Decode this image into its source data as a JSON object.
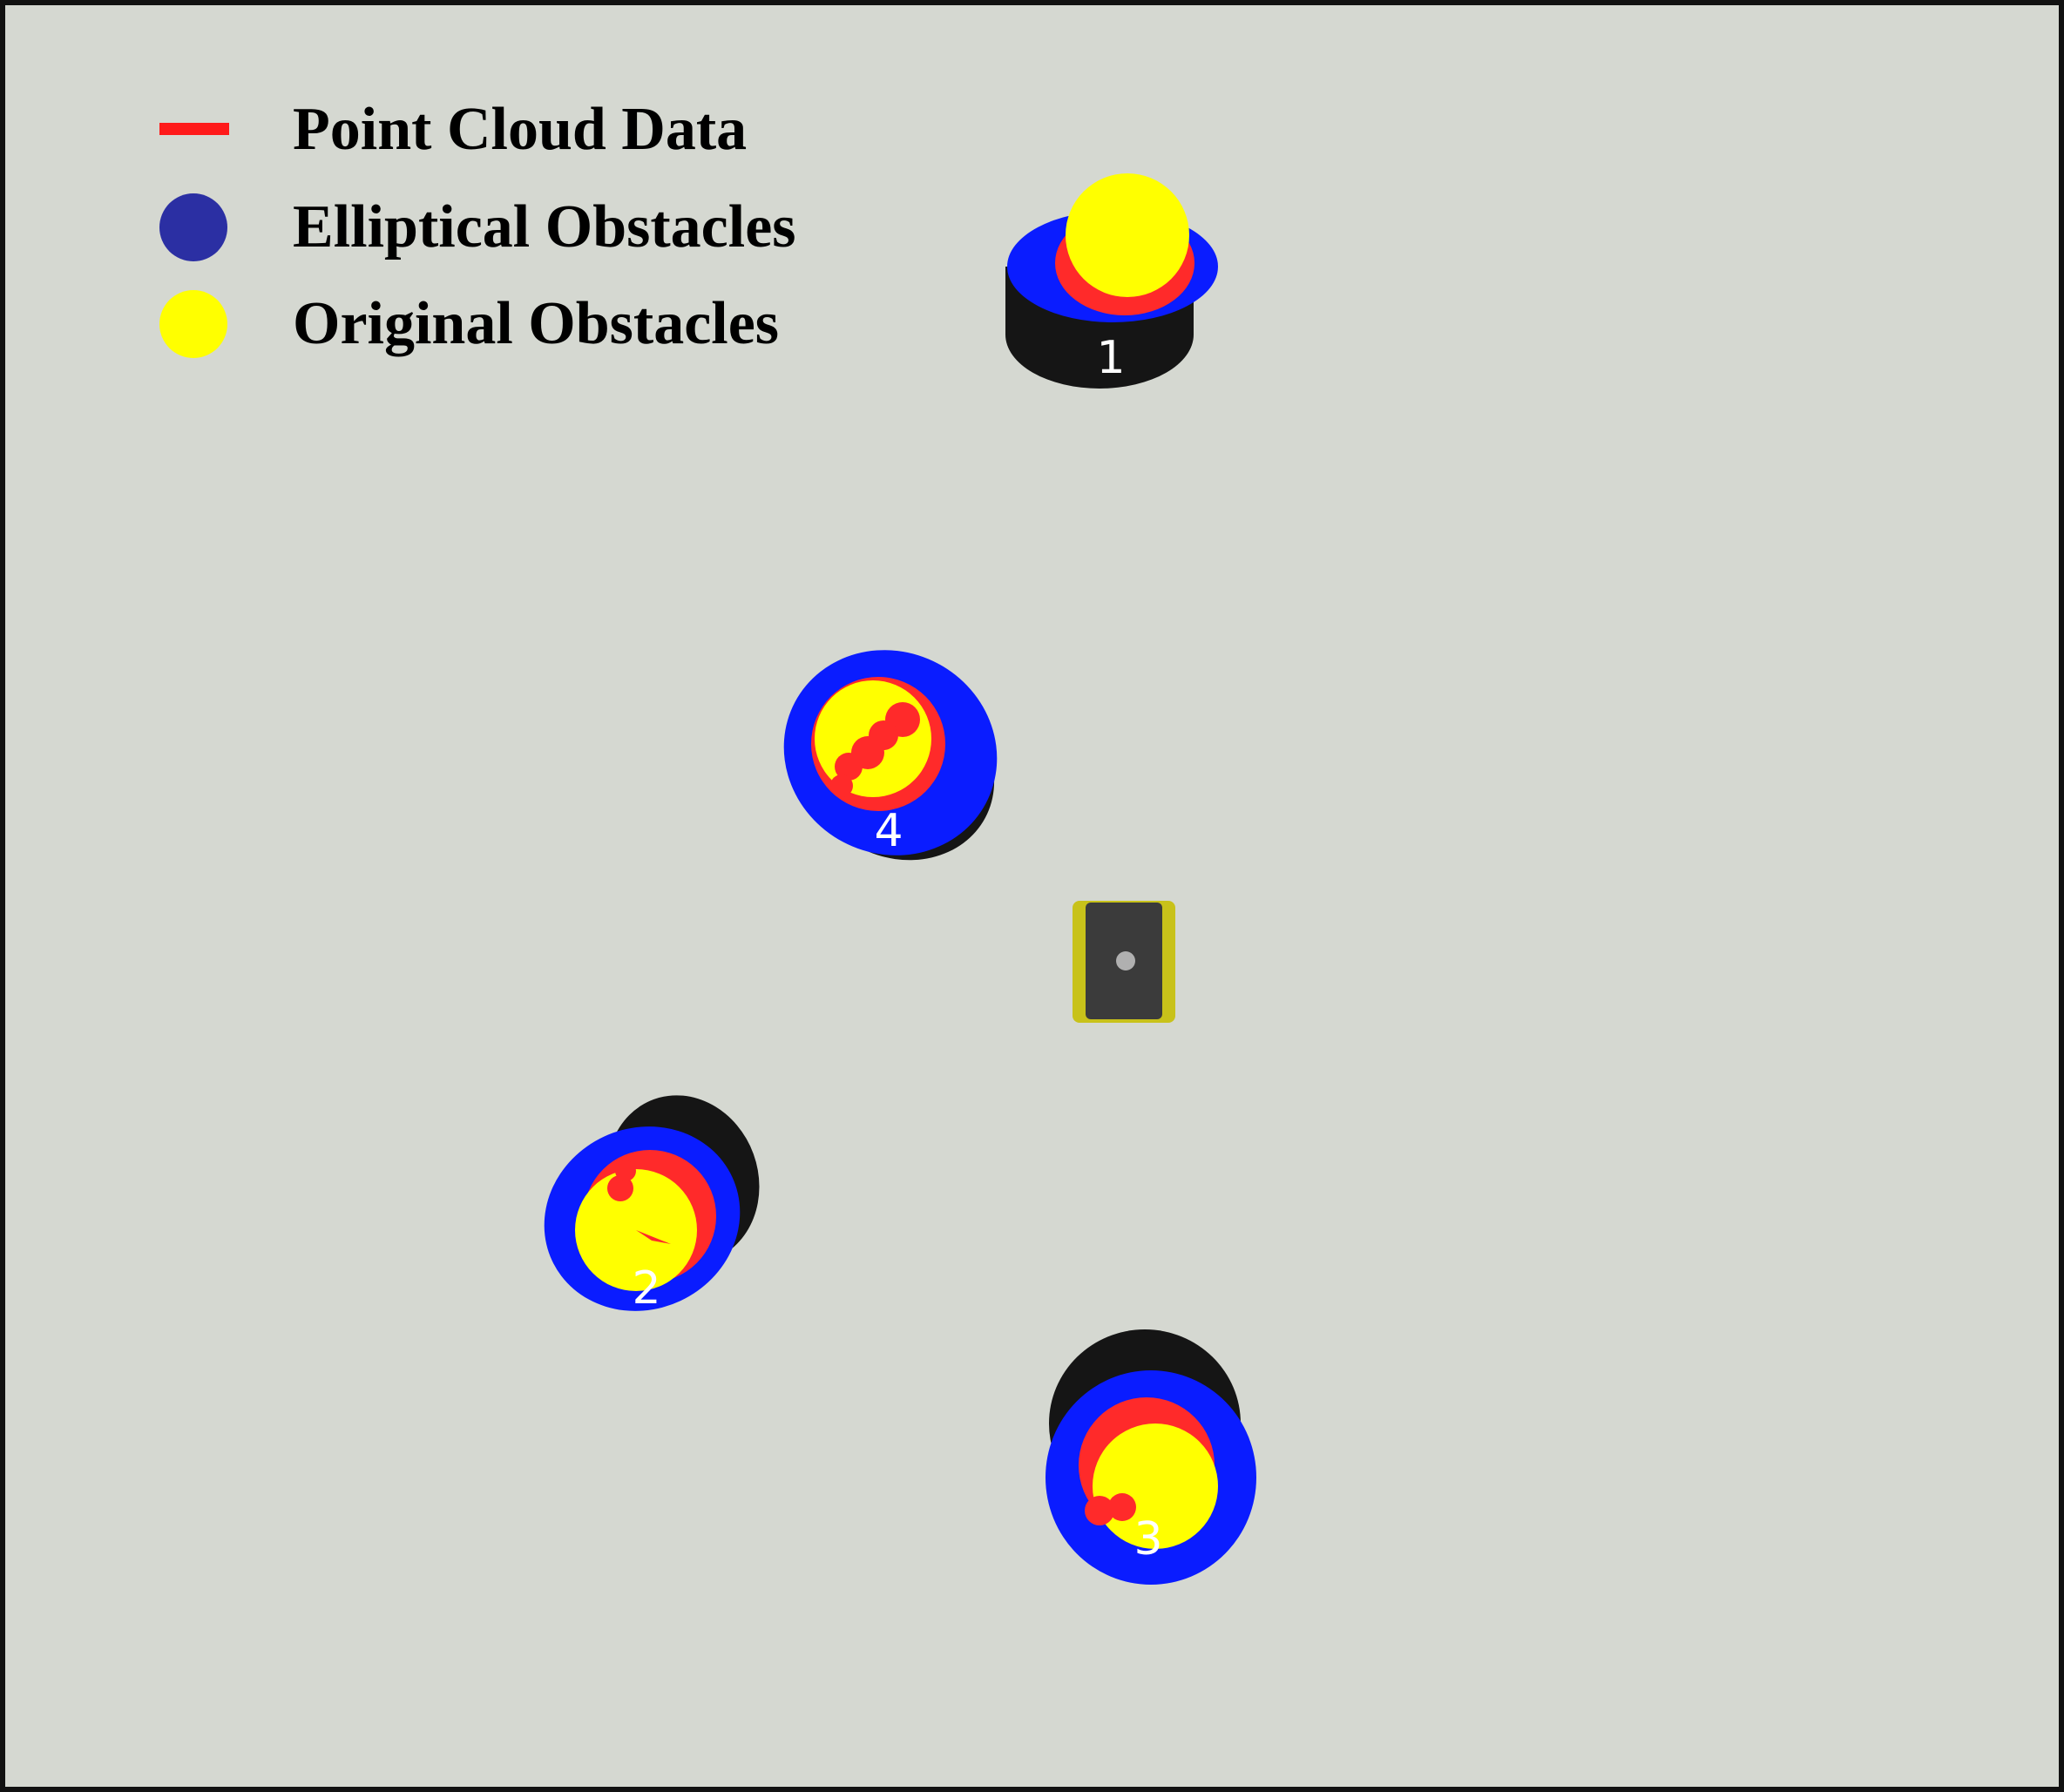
{
  "legend": {
    "items": [
      {
        "label": "Point Cloud Data",
        "marker": "line",
        "color": "#ff1a1a"
      },
      {
        "label": "Elliptical Obstacles",
        "marker": "circle",
        "color": "#2b2fa3"
      },
      {
        "label": "Original Obstacles",
        "marker": "circle",
        "color": "#ffff00"
      }
    ]
  },
  "scene": {
    "background_color": "#d5d8d1",
    "colors": {
      "shadow": "#151515",
      "ellipse": "#0a1cff",
      "obstacle": "#ffff00",
      "point_cloud": "#ff2a2a",
      "label": "#ffffff",
      "robot_body": "#3b3b3b",
      "robot_wheel": "#c8c21a"
    },
    "obstacles": [
      {
        "id": "1",
        "label": "1"
      },
      {
        "id": "2",
        "label": "2"
      },
      {
        "id": "3",
        "label": "3"
      },
      {
        "id": "4",
        "label": "4"
      }
    ],
    "robot": {
      "icon": "robot-topview-icon"
    }
  }
}
